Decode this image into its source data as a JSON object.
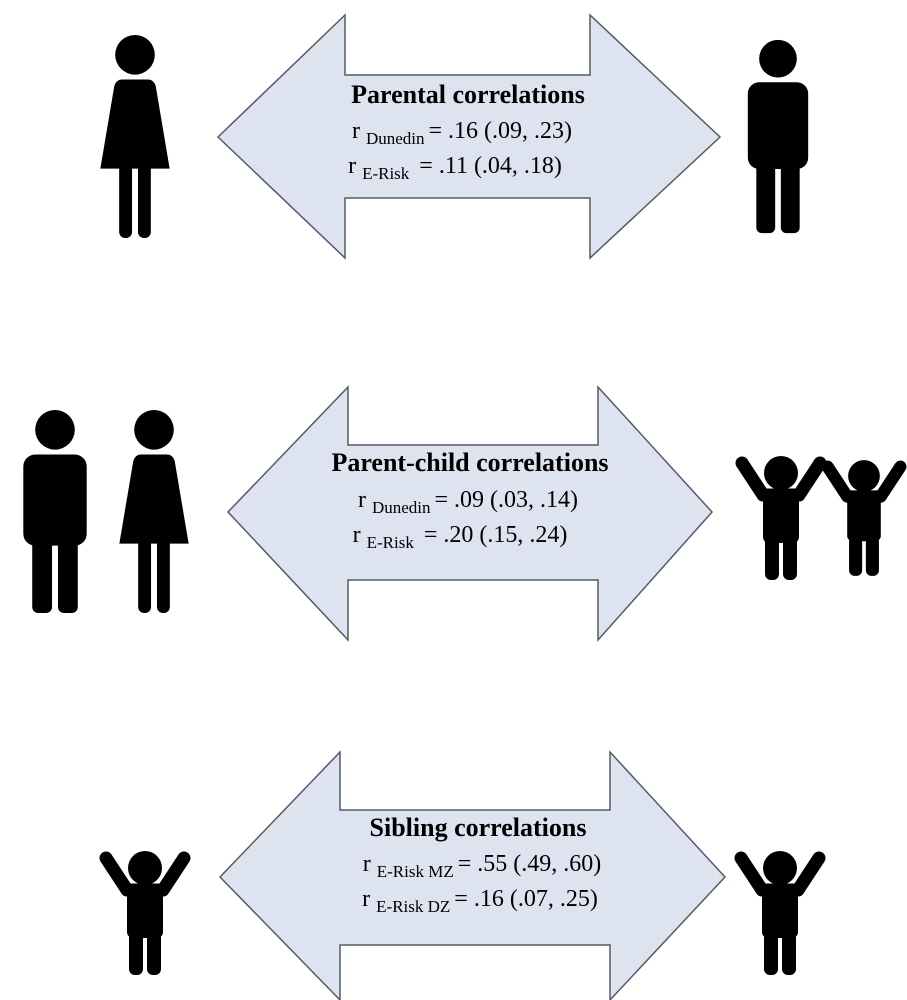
{
  "panels": [
    {
      "title": "Parental correlations",
      "lines": [
        {
          "symbol": "r",
          "subscript": "Dunedin",
          "value": "= .16 (.09, .23)"
        },
        {
          "symbol": "r",
          "subscript": "E-Risk",
          "value": "= .11 (.04, .18)"
        }
      ]
    },
    {
      "title": "Parent-child correlations",
      "lines": [
        {
          "symbol": "r",
          "subscript": "Dunedin",
          "value": "= .09 (.03, .14)"
        },
        {
          "symbol": "r",
          "subscript": "E-Risk",
          "value": "= .20 (.15, .24)"
        }
      ]
    },
    {
      "title": "Sibling correlations",
      "lines": [
        {
          "symbol": "r",
          "subscript": "E-Risk MZ",
          "value": "= .55 (.49, .60)"
        },
        {
          "symbol": "r",
          "subscript": "E-Risk DZ",
          "value": "= .16 (.07, .25)"
        }
      ]
    }
  ]
}
